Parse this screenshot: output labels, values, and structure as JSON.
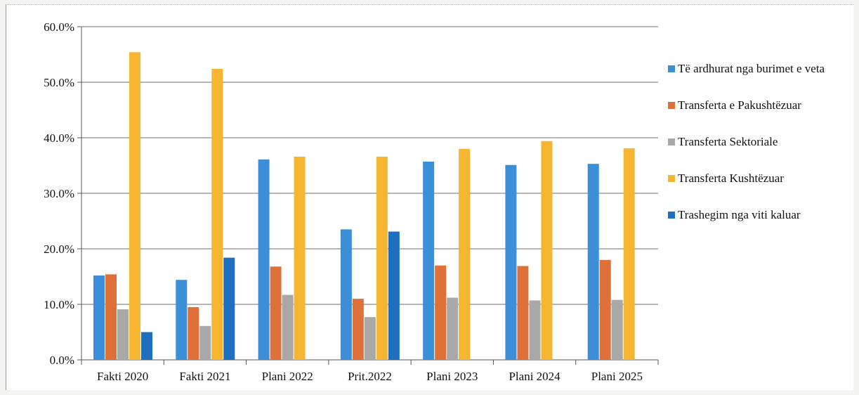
{
  "chart_data": {
    "type": "bar",
    "categories": [
      "Fakti 2020",
      "Fakti 2021",
      "Plani 2022",
      "Prit.2022",
      "Plani 2023",
      "Plani 2024",
      "Plani 2025"
    ],
    "ylim": [
      0,
      60
    ],
    "yticks": [
      "0.0%",
      "10.0%",
      "20.0%",
      "30.0%",
      "40.0%",
      "50.0%",
      "60.0%"
    ],
    "ytick_values": [
      0,
      10,
      20,
      30,
      40,
      50,
      60
    ],
    "grid": "horizontal",
    "legend_position": "right",
    "series": [
      {
        "name": "Të ardhurat nga burimet e veta",
        "color": "#3b8fd8",
        "values": [
          15.2,
          14.4,
          36.1,
          23.5,
          35.7,
          35.1,
          35.3
        ]
      },
      {
        "name": "Transferta e Pakushtëzuar",
        "color": "#e0703a",
        "values": [
          15.4,
          9.5,
          16.8,
          11.0,
          17.0,
          16.9,
          18.0
        ]
      },
      {
        "name": "Transferta Sektoriale",
        "color": "#a8a8a8",
        "values": [
          9.1,
          6.1,
          11.7,
          7.7,
          11.2,
          10.7,
          10.8
        ]
      },
      {
        "name": "Transferta Kushtëzuar",
        "color": "#f5b531",
        "values": [
          55.4,
          52.4,
          36.6,
          36.6,
          38.0,
          39.4,
          38.1
        ]
      },
      {
        "name": "Trashegim nga viti kaluar",
        "color": "#1f6fc0",
        "values": [
          5.0,
          18.4,
          0,
          23.1,
          0,
          0,
          0
        ]
      }
    ]
  }
}
